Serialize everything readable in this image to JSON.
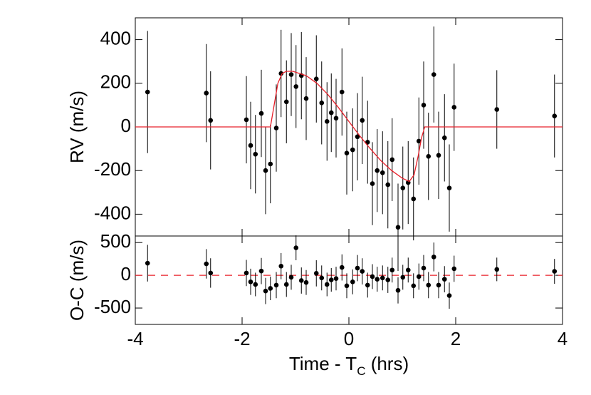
{
  "chart_data": [
    {
      "type": "scatter",
      "ylabel": "RV (m/s)",
      "ylim": [
        -500,
        500
      ],
      "yticks": [
        -400,
        -200,
        0,
        200,
        400
      ],
      "xlim": [
        -4,
        4
      ],
      "series": [
        {
          "kind": "errorbar",
          "color": "#000000",
          "x": [
            -3.77,
            -2.67,
            -2.59,
            -1.92,
            -1.84,
            -1.75,
            -1.64,
            -1.56,
            -1.47,
            -1.36,
            -1.27,
            -1.17,
            -1.08,
            -0.99,
            -0.89,
            -0.8,
            -0.61,
            -0.51,
            -0.41,
            -0.33,
            -0.24,
            -0.13,
            -0.04,
            0.07,
            0.16,
            0.25,
            0.35,
            0.44,
            0.53,
            0.63,
            0.73,
            0.81,
            0.92,
            1.01,
            1.11,
            1.21,
            1.31,
            1.4,
            1.49,
            1.59,
            1.68,
            1.79,
            1.88,
            1.97,
            2.77,
            3.85
          ],
          "values": [
            160,
            155,
            30,
            33,
            -85,
            -125,
            62,
            -200,
            -170,
            -5,
            245,
            115,
            240,
            185,
            235,
            130,
            220,
            110,
            25,
            65,
            40,
            160,
            -120,
            -105,
            -45,
            30,
            -70,
            -260,
            -200,
            -210,
            -265,
            -150,
            -460,
            -280,
            -255,
            -330,
            -65,
            100,
            -135,
            240,
            -130,
            -50,
            -280,
            90,
            80,
            50
          ],
          "errors": [
            280,
            225,
            225,
            200,
            200,
            180,
            200,
            200,
            180,
            200,
            200,
            190,
            190,
            190,
            200,
            190,
            200,
            190,
            180,
            180,
            180,
            200,
            190,
            190,
            200,
            200,
            190,
            190,
            190,
            190,
            200,
            190,
            200,
            190,
            190,
            190,
            200,
            200,
            200,
            220,
            200,
            200,
            200,
            200,
            180,
            190
          ]
        },
        {
          "kind": "line",
          "color": "#e8202a",
          "x": [
            -4,
            -1.47,
            -1.4,
            -1.33,
            -1.25,
            -1.17,
            -1.05,
            -0.8,
            -0.6,
            -0.4,
            -0.2,
            0,
            0.2,
            0.4,
            0.6,
            0.8,
            1.0,
            1.13,
            1.22,
            1.3,
            1.36,
            1.42,
            4
          ],
          "values": [
            0,
            0,
            100,
            200,
            245,
            255,
            255,
            235,
            200,
            150,
            90,
            25,
            -40,
            -100,
            -155,
            -200,
            -235,
            -250,
            -220,
            -130,
            -50,
            0,
            0
          ]
        }
      ]
    },
    {
      "type": "scatter",
      "ylabel": "O-C (m/s)",
      "ylim": [
        -750,
        600
      ],
      "yticks": [
        -500,
        0,
        500
      ],
      "xlim": [
        -4,
        4
      ],
      "xticks": [
        -4,
        -2,
        0,
        2,
        4
      ],
      "xlabel": [
        "Time - T",
        "C",
        " (hrs)"
      ],
      "hline": 0,
      "hline_color": "#e8202a",
      "series": [
        {
          "kind": "errorbar",
          "color": "#000000",
          "x": [
            -3.77,
            -2.67,
            -2.59,
            -1.92,
            -1.84,
            -1.75,
            -1.64,
            -1.56,
            -1.47,
            -1.36,
            -1.27,
            -1.17,
            -1.08,
            -0.99,
            -0.89,
            -0.8,
            -0.61,
            -0.51,
            -0.41,
            -0.33,
            -0.24,
            -0.13,
            -0.04,
            0.07,
            0.16,
            0.25,
            0.35,
            0.44,
            0.53,
            0.63,
            0.73,
            0.81,
            0.92,
            1.01,
            1.11,
            1.21,
            1.31,
            1.4,
            1.49,
            1.59,
            1.68,
            1.79,
            1.88,
            1.97,
            2.77,
            3.85
          ],
          "values": [
            185,
            175,
            35,
            35,
            -100,
            -140,
            65,
            -240,
            -200,
            -150,
            140,
            -140,
            -30,
            420,
            -80,
            -110,
            30,
            -40,
            -140,
            -70,
            -50,
            120,
            -160,
            -100,
            110,
            60,
            -150,
            -20,
            -60,
            -40,
            -70,
            80,
            -230,
            -30,
            80,
            -160,
            -20,
            110,
            -150,
            280,
            -150,
            -60,
            -310,
            100,
            90,
            60
          ],
          "errors": [
            280,
            225,
            225,
            200,
            200,
            180,
            200,
            200,
            180,
            200,
            200,
            190,
            190,
            190,
            200,
            190,
            200,
            190,
            180,
            180,
            180,
            200,
            190,
            190,
            200,
            200,
            190,
            190,
            190,
            190,
            200,
            190,
            200,
            190,
            190,
            190,
            200,
            200,
            200,
            220,
            200,
            200,
            200,
            200,
            180,
            190
          ]
        }
      ]
    }
  ]
}
